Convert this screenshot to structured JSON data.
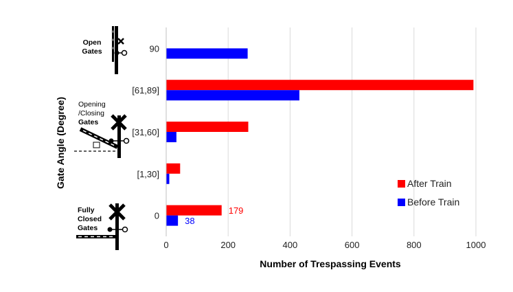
{
  "chart_data": {
    "type": "bar",
    "orientation": "horizontal",
    "categories": [
      "90",
      "[61,89]",
      "[31,60]",
      "[1,30]",
      "0"
    ],
    "series": [
      {
        "name": "After Train",
        "color": "#ff0000",
        "values": [
          0,
          992,
          265,
          45,
          179
        ]
      },
      {
        "name": "Before Train",
        "color": "#0000ff",
        "values": [
          263,
          430,
          33,
          10,
          38
        ]
      }
    ],
    "data_labels": [
      {
        "series": "After Train",
        "category": "0",
        "text": "179",
        "color": "#ff0000"
      },
      {
        "series": "Before Train",
        "category": "0",
        "text": "38",
        "color": "#0000ff"
      }
    ],
    "xlabel": "Number of Trespassing Events",
    "ylabel": "Gate Angle (Degree)",
    "xlim": [
      0,
      1000
    ],
    "xticks": [
      0,
      200,
      400,
      600,
      800,
      1000
    ],
    "grid": "vertical",
    "legend_position": "bottom-right"
  },
  "gate_labels": {
    "open": [
      "Open",
      "Gates"
    ],
    "opening": [
      "Opening",
      "/Closing",
      "Gates"
    ],
    "closed": [
      "Fully",
      "Closed",
      "Gates"
    ]
  },
  "icons": [
    "open-gate-icon",
    "opening-closing-gate-icon",
    "closed-gate-icon"
  ]
}
